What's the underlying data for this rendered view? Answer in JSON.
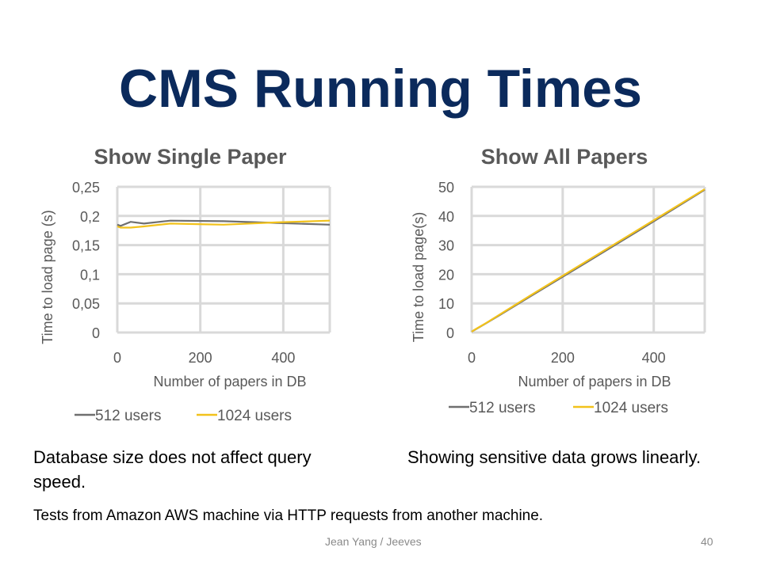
{
  "slide": {
    "title": "CMS Running Times",
    "caption_left": "Database size does not affect query speed.",
    "caption_right": "Showing sensitive data grows linearly.",
    "note": "Tests from Amazon AWS machine via HTTP requests from another machine.",
    "footer": "Jean Yang / Jeeves",
    "page_number": "40"
  },
  "colors": {
    "title": "#0b2a5c",
    "series_512": "#6f6f6f",
    "series_1024": "#f2c21b",
    "grid": "#d9d9d9",
    "axis_text": "#595959"
  },
  "chart_data": [
    {
      "type": "line",
      "title": "Show Single Paper",
      "xlabel": "Number of papers in DB",
      "ylabel": "Time to load page (s)",
      "xlim": [
        0,
        512
      ],
      "ylim": [
        0,
        0.25
      ],
      "x_ticks": [
        0,
        200,
        400
      ],
      "x_tick_labels": [
        "0",
        "200",
        "400"
      ],
      "y_ticks": [
        0,
        0.05,
        0.1,
        0.15,
        0.2,
        0.25
      ],
      "y_tick_labels": [
        "0",
        "0,05",
        "0,1",
        "0,15",
        "0,2",
        "0,25"
      ],
      "grid": true,
      "legend": "bottom",
      "series": [
        {
          "name": "512 users",
          "color": "#6f6f6f",
          "x": [
            0,
            8,
            32,
            64,
            128,
            256,
            384,
            512
          ],
          "y": [
            0.185,
            0.183,
            0.19,
            0.187,
            0.192,
            0.191,
            0.188,
            0.185
          ]
        },
        {
          "name": "1024 users",
          "color": "#f2c21b",
          "x": [
            0,
            8,
            32,
            64,
            128,
            256,
            384,
            512
          ],
          "y": [
            0.182,
            0.18,
            0.18,
            0.182,
            0.187,
            0.185,
            0.189,
            0.192
          ]
        }
      ]
    },
    {
      "type": "line",
      "title": "Show All Papers",
      "xlabel": "Number of papers in DB",
      "ylabel": "Time to load page(s)",
      "xlim": [
        0,
        512
      ],
      "ylim": [
        0,
        50
      ],
      "x_ticks": [
        0,
        200,
        400
      ],
      "x_tick_labels": [
        "0",
        "200",
        "400"
      ],
      "y_ticks": [
        0,
        10,
        20,
        30,
        40,
        50
      ],
      "y_tick_labels": [
        "0",
        "10",
        "20",
        "30",
        "40",
        "50"
      ],
      "grid": true,
      "legend": "bottom",
      "series": [
        {
          "name": "512 users",
          "color": "#6f6f6f",
          "x": [
            0,
            8,
            32,
            64,
            128,
            256,
            384,
            512
          ],
          "y": [
            0.3,
            1.0,
            3.2,
            6.2,
            12.3,
            24.4,
            36.6,
            49.0
          ]
        },
        {
          "name": "1024 users",
          "color": "#f2c21b",
          "x": [
            0,
            8,
            32,
            64,
            128,
            256,
            384,
            512
          ],
          "y": [
            0.3,
            1.1,
            3.3,
            6.4,
            12.6,
            24.8,
            37.0,
            49.2
          ]
        }
      ]
    }
  ]
}
